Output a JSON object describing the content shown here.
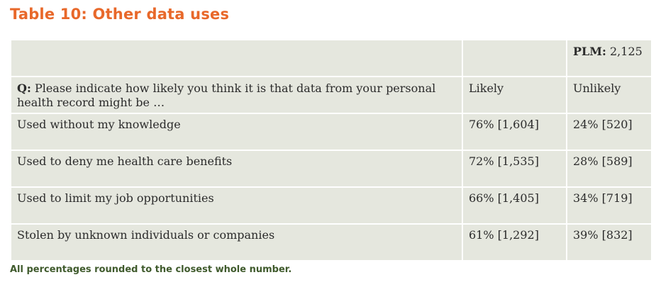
{
  "title": "Table 10: Other data uses",
  "header": {
    "sample_label": "PLM:",
    "sample_value": "2,125"
  },
  "question": {
    "prefix": "Q:",
    "text": "Please indicate how likely you think it is that data from your personal health record might be …",
    "col_likely": "Likely",
    "col_unlikely": "Unlikely"
  },
  "rows": [
    {
      "label": "Used without my knowledge",
      "likely": "76% [1,604]",
      "unlikely": "24% [520]"
    },
    {
      "label": "Used to deny me health care benefits",
      "likely": "72% [1,535]",
      "unlikely": "28% [589]"
    },
    {
      "label": "Used to limit my job opportunities",
      "likely": "66% [1,405]",
      "unlikely": "34% [719]"
    },
    {
      "label": "Stolen by unknown individuals or companies",
      "likely": "61% [1,292]",
      "unlikely": "39% [832]"
    }
  ],
  "footnote": "All percentages rounded to the closest whole number."
}
